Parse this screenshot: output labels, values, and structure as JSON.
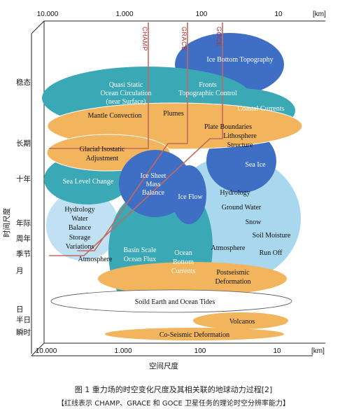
{
  "x_axis": {
    "ticks": [
      "10.000",
      "1.000",
      "100",
      "10"
    ],
    "unit": "[km]",
    "label": "空间尺度"
  },
  "y_axis": {
    "label": "时间尺度",
    "categories": [
      "稳态",
      "长期",
      "十年",
      "年际",
      "周年",
      "季节",
      "月",
      "日",
      "半日",
      "瞬时"
    ]
  },
  "missions": [
    "CHAMP",
    "GRACE",
    "GOCE"
  ],
  "phenomena": {
    "ice_bottom_topography": "Ice Bottom Topography",
    "quasi_static_1": "Quasi Static",
    "quasi_static_2": "Ocean Circulation",
    "quasi_static_3": "(near Surface)",
    "fronts_1": "Fronts",
    "fronts_2": "Topographic Control",
    "coastal_currents": "Coastal Currents",
    "mantle_convection": "Mantle Convection",
    "plumes": "Plumes",
    "plate_boundaries": "Plate Boundaries",
    "lithosphere_1": "Lithosphere",
    "lithosphere_2": "Structure",
    "glacial_1": "Glacial Isostatic",
    "glacial_2": "Adjustment",
    "sea_ice": "Sea Ice",
    "sea_level_change": "Sea Level Change",
    "ice_sheet_1": "Ice Sheet",
    "ice_sheet_2": "Mass",
    "ice_sheet_3": "Balance",
    "ice_flow": "Ice Flow",
    "hydrology_right": "Hydrology",
    "ground_water": "Ground Water",
    "snow": "Snow",
    "soil_moisture": "Soil Moisture",
    "run_off": "Run Off",
    "hydrology_left_1": "Hydrology",
    "hydrology_left_2": "Water",
    "hydrology_left_3": "Balance",
    "hydrology_left_4": "Storage",
    "hydrology_left_5": "Variations",
    "basin_1": "Basin Scale",
    "basin_2": "Ocean Flux",
    "ocean_bottom_1": "Ocean",
    "ocean_bottom_2": "Bottom",
    "ocean_bottom_3": "Currents",
    "atmosphere_right": "Atmosphere",
    "atmosphere_left": "Atmosphere",
    "postseismic_1": "Postseismic",
    "postseismic_2": "Deformation",
    "earth_tides": "Soild Earth and Ocean Tides",
    "volcanos": "Volcanos",
    "coseismic": "Co-Seismic Deformation"
  },
  "caption": {
    "line1": "图 1    重力场的时空变化尺度及其相关联的地球动力过程[2]",
    "line2": "【红线表示 CHAMP、GRACE 和 GOCE 卫星任务的理论时空分辨率能力】"
  },
  "colors": {
    "teal": "#3aa9b5",
    "blue": "#3f6fc4",
    "light_blue": "#a9d7ee",
    "orange": "#f2b45c",
    "mission_line": "#c26a5e"
  }
}
